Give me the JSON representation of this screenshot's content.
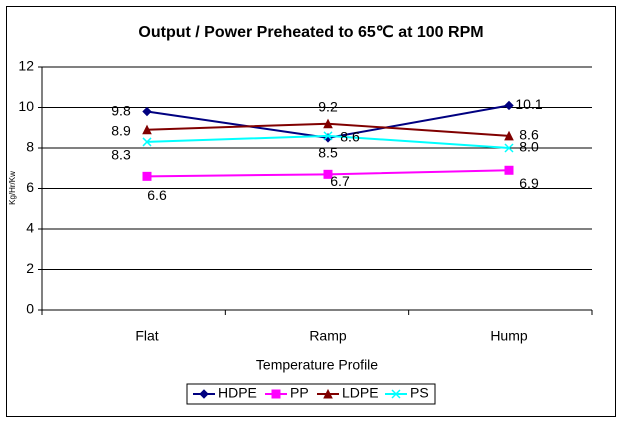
{
  "chart_data": {
    "type": "line",
    "title": "Output / Power Preheated to 65℃ at 100 RPM",
    "x_label": "Temperature Profile",
    "y_label": "Kg/Hr/Kw",
    "categories": [
      "Flat",
      "Ramp",
      "Hump"
    ],
    "series": [
      {
        "name": "HDPE",
        "color": "#000080",
        "marker": "diamond",
        "values": [
          9.8,
          8.5,
          10.1
        ],
        "value_labels": [
          "9.8",
          "8.5",
          "10.1"
        ]
      },
      {
        "name": "PP",
        "color": "#ff00ff",
        "marker": "square",
        "values": [
          6.6,
          6.7,
          6.9
        ],
        "value_labels": [
          "6.6",
          "6.7",
          "6.9"
        ]
      },
      {
        "name": "LDPE",
        "color": "#800000",
        "marker": "triangle",
        "values": [
          8.9,
          9.2,
          8.6
        ],
        "value_labels": [
          "8.9",
          "9.2",
          "8.6"
        ]
      },
      {
        "name": "PS",
        "color": "#00ffff",
        "marker": "x",
        "values": [
          8.3,
          8.6,
          8.0
        ],
        "value_labels": [
          "8.3",
          "8.6",
          "8.0"
        ]
      }
    ],
    "ylim": [
      0,
      12
    ],
    "yticks": [
      0,
      2,
      4,
      6,
      8,
      10,
      12
    ],
    "grid": true,
    "legend": "bottom"
  }
}
